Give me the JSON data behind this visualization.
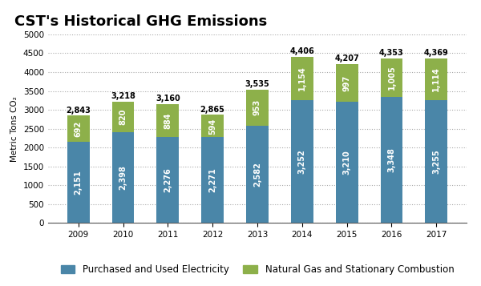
{
  "title": "CST's Historical GHG Emissions",
  "years": [
    "2009",
    "2010",
    "2011",
    "2012",
    "2013",
    "2014",
    "2015",
    "2016",
    "2017"
  ],
  "electricity": [
    2151,
    2398,
    2276,
    2271,
    2582,
    3252,
    3210,
    3348,
    3255
  ],
  "natural_gas": [
    692,
    820,
    884,
    594,
    953,
    1154,
    997,
    1005,
    1114
  ],
  "totals": [
    2843,
    3218,
    3160,
    2865,
    3535,
    4406,
    4207,
    4353,
    4369
  ],
  "electricity_color": "#4a86a8",
  "natural_gas_color": "#8db04a",
  "ylabel": "Metric Tons CO₂",
  "ylim": [
    0,
    5000
  ],
  "yticks": [
    0,
    500,
    1000,
    1500,
    2000,
    2500,
    3000,
    3500,
    4000,
    4500,
    5000
  ],
  "legend_electricity": "Purchased and Used Electricity",
  "legend_natural_gas": "Natural Gas and Stationary Combustion",
  "title_fontsize": 13,
  "label_fontsize": 7,
  "tick_fontsize": 7.5,
  "legend_fontsize": 8.5,
  "bar_width": 0.5,
  "background_color": "#ffffff",
  "grid_color": "#aaaaaa"
}
